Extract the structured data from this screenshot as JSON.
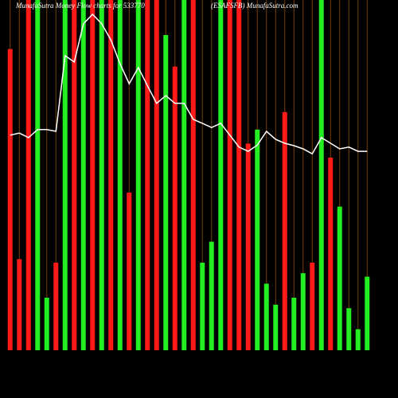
{
  "chart_data": {
    "type": "bar",
    "title": "MunafaSutra  Money Flow charts for 533770",
    "subtitle": "(ESAFSFB) MunafaSutra.com",
    "values": [
      86,
      26,
      100,
      100,
      15,
      25,
      100,
      100,
      100,
      100,
      100,
      100,
      100,
      45,
      100,
      100,
      100,
      90,
      81,
      100,
      100,
      25,
      31,
      100,
      100,
      100,
      59,
      63,
      19,
      13,
      68,
      15,
      22,
      25,
      100,
      55,
      41,
      12,
      6,
      21
    ],
    "colors": [
      "#ff1a1a",
      "#ff1a1a",
      "#ff1a1a",
      "#22ee22",
      "#22ee22",
      "#ff1a1a",
      "#22ee22",
      "#ff1a1a",
      "#22ee22",
      "#ff1a1a",
      "#22ee22",
      "#ff1a1a",
      "#22ee22",
      "#ff1a1a",
      "#22ee22",
      "#ff1a1a",
      "#ff1a1a",
      "#22ee22",
      "#ff1a1a",
      "#22ee22",
      "#ff1a1a",
      "#22ee22",
      "#22ee22",
      "#22ee22",
      "#ff1a1a",
      "#ff1a1a",
      "#ff1a1a",
      "#22ee22",
      "#22ee22",
      "#22ee22",
      "#ff1a1a",
      "#22ee22",
      "#22ee22",
      "#ff1a1a",
      "#22ee22",
      "#ff1a1a",
      "#22ee22",
      "#22ee22",
      "#22ee22",
      "#22ee22"
    ],
    "line": {
      "color": "#ffffff",
      "values": [
        61.4,
        62.0,
        60.7,
        63.0,
        63.0,
        62.5,
        84.1,
        82.3,
        93.2,
        95.9,
        93.2,
        88.6,
        81.8,
        76.1,
        80.7,
        75.5,
        70.5,
        72.7,
        70.5,
        70.5,
        65.9,
        64.8,
        63.6,
        64.8,
        61.4,
        58.0,
        56.8,
        58.6,
        62.5,
        60.2,
        59.1,
        58.4,
        57.5,
        56.1,
        60.7,
        59.1,
        57.5,
        58.0,
        56.8,
        56.8
      ]
    },
    "ylim": [
      0,
      100
    ],
    "grid": true,
    "grid_color": "#7a3d00",
    "background": "#000000"
  }
}
